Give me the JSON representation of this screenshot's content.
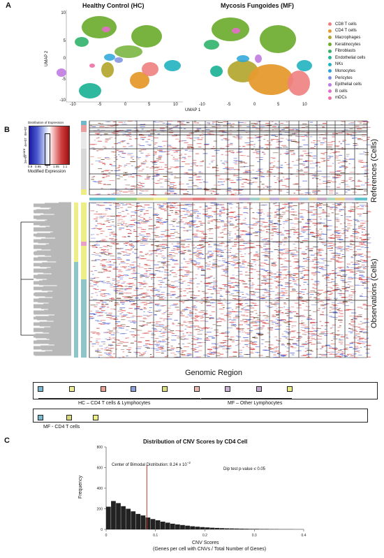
{
  "panel_a": {
    "label": "A",
    "titles": [
      "Healthy Control (HC)",
      "Mycosis Fungoides (MF)"
    ],
    "y_label": "UMAP 2",
    "x_label": "UMAP 1",
    "y_ticks": [
      "10",
      "5",
      "0",
      "-5",
      "-10"
    ],
    "x_ticks": [
      "-10",
      "-5",
      "0",
      "5",
      "10"
    ],
    "legend": [
      {
        "label": "CD8 T cells",
        "color": "#f08080"
      },
      {
        "label": "CD4 T cells",
        "color": "#e69a2e"
      },
      {
        "label": "Macrophages",
        "color": "#b2a42a"
      },
      {
        "label": "Keratinocytes",
        "color": "#6aab2a"
      },
      {
        "label": "Fibroblasts",
        "color": "#2fb36a"
      },
      {
        "label": "Endothelial cells",
        "color": "#23b59a"
      },
      {
        "label": "NKs",
        "color": "#1fb3c0"
      },
      {
        "label": "Monocytes",
        "color": "#2aa4d8"
      },
      {
        "label": "Pericytes",
        "color": "#7b8fe0"
      },
      {
        "label": "Epithelial cells",
        "color": "#c07be0"
      },
      {
        "label": "B cells",
        "color": "#e36fc9"
      },
      {
        "label": "mDCs",
        "color": "#ef6fa6"
      }
    ]
  },
  "panel_b": {
    "label": "B",
    "key_title": "Distribution of Expression",
    "key_ylabel": "Count",
    "key_yticks": [
      "8e+07",
      "4e+07",
      "0e+00",
      "2e+07"
    ],
    "key_xticks": [
      "0.9",
      "0.95",
      "1",
      "1.05",
      "1.1"
    ],
    "key_xlabel": "Modified Expression",
    "references_label": "References (Cells)",
    "observations_label": "Observations (Cells)",
    "genomic_label": "Genomic Region",
    "groups": [
      {
        "label": "HC – CD4 T cells & Lymphocytes"
      },
      {
        "label": "MF – Other Lymphocytes"
      },
      {
        "label": "MF - CD4 T cells"
      }
    ],
    "key_row1_colors": [
      "#79b8cf",
      "#eeee99",
      "#e8a090",
      "#8fa0d8",
      "#dcdc80",
      "#e8b8b0",
      "#c8b0d0",
      "#c0a8c8",
      "#eeee88"
    ],
    "key_row2_colors": [
      "#78b8cc",
      "#d8d880",
      "#eeee88"
    ]
  },
  "panel_c": {
    "label": "C",
    "chart_data": {
      "type": "bar",
      "title": "Distribution of CNV Scores by CD4 Cell",
      "xlabel": "CNV Scores",
      "xlabel2": "(Genes per cell with CNVs / Total Number of Genes)",
      "ylabel": "Frequency",
      "xlim": [
        0,
        0.4
      ],
      "ylim": [
        0,
        800
      ],
      "x_ticks": [
        "0",
        "0.1",
        "0.2",
        "0.3",
        "0.4"
      ],
      "y_ticks": [
        "0",
        "200",
        "400",
        "600",
        "800"
      ],
      "annotation_center": "Center of Bimodal Distribution: 8.24 x 10",
      "annotation_center_exp": "−2",
      "annotation_dip": "Dip test p-value ≤ 0.05",
      "center_value": 0.0824,
      "bin_centers": [
        0.005,
        0.015,
        0.025,
        0.035,
        0.045,
        0.055,
        0.065,
        0.075,
        0.085,
        0.095,
        0.105,
        0.115,
        0.125,
        0.135,
        0.145,
        0.155,
        0.165,
        0.175,
        0.185,
        0.195,
        0.205,
        0.215,
        0.225,
        0.235,
        0.245,
        0.255,
        0.265,
        0.275,
        0.285,
        0.295,
        0.305,
        0.315,
        0.325,
        0.335,
        0.345,
        0.355,
        0.365,
        0.375,
        0.385,
        0.395
      ],
      "values": [
        220,
        275,
        255,
        225,
        200,
        175,
        150,
        135,
        115,
        100,
        88,
        75,
        65,
        55,
        48,
        42,
        36,
        30,
        26,
        22,
        19,
        16,
        14,
        12,
        10,
        9,
        8,
        7,
        6,
        5,
        5,
        4,
        4,
        3,
        3,
        2,
        2,
        2,
        1,
        1
      ]
    }
  }
}
